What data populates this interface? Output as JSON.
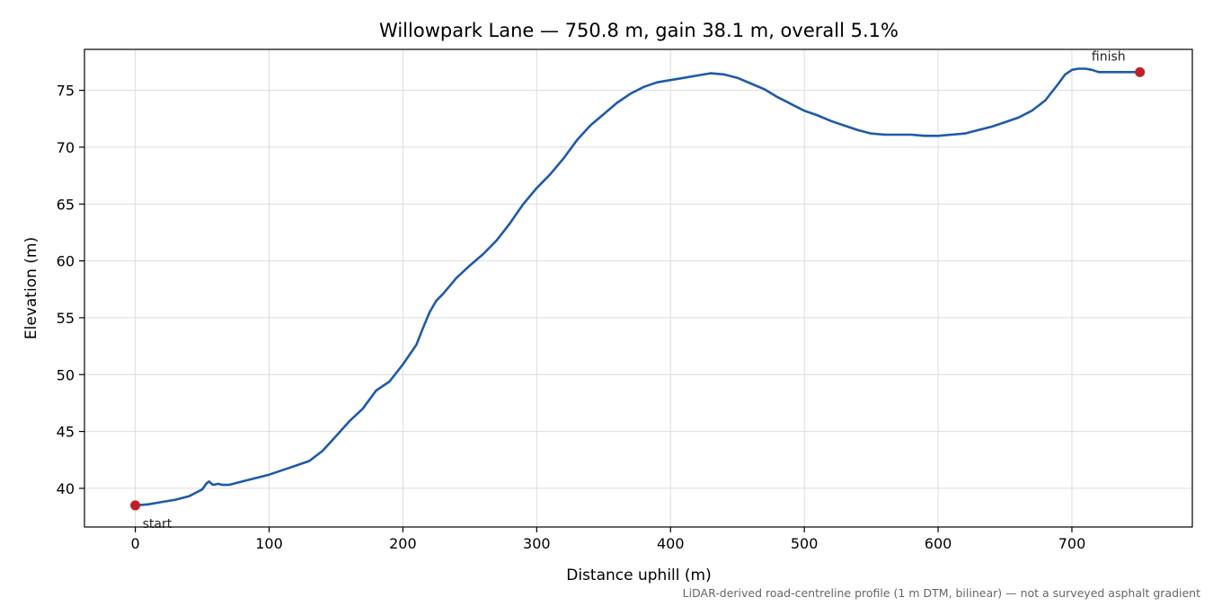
{
  "chart_data": {
    "type": "line",
    "title": "Willowpark Lane — 750.8 m, gain 38.1 m, overall 5.1%",
    "xlabel": "Distance uphill (m)",
    "ylabel": "Elevation (m)",
    "xlim": [
      -38,
      790
    ],
    "ylim": [
      36.6,
      78.6
    ],
    "xticks": [
      0,
      100,
      200,
      300,
      400,
      500,
      600,
      700
    ],
    "yticks": [
      40,
      45,
      50,
      55,
      60,
      65,
      70,
      75
    ],
    "grid": true,
    "series": [
      {
        "color": "#1f5aa8",
        "x": [
          0,
          10,
          20,
          30,
          40,
          45,
          50,
          53,
          55,
          58,
          62,
          65,
          70,
          80,
          90,
          100,
          110,
          120,
          130,
          140,
          150,
          160,
          170,
          180,
          190,
          200,
          210,
          215,
          220,
          225,
          230,
          240,
          250,
          260,
          270,
          280,
          290,
          300,
          310,
          320,
          330,
          340,
          350,
          360,
          370,
          380,
          390,
          400,
          410,
          420,
          430,
          440,
          450,
          460,
          470,
          480,
          490,
          500,
          510,
          520,
          530,
          540,
          550,
          560,
          570,
          580,
          590,
          600,
          610,
          620,
          630,
          640,
          650,
          660,
          670,
          680,
          690,
          695,
          700,
          705,
          710,
          715,
          720,
          730,
          740,
          750.8
        ],
        "y": [
          38.5,
          38.6,
          38.8,
          39.0,
          39.3,
          39.6,
          39.9,
          40.4,
          40.6,
          40.3,
          40.4,
          40.3,
          40.3,
          40.6,
          40.9,
          41.2,
          41.6,
          42.0,
          42.4,
          43.3,
          44.6,
          45.9,
          47.0,
          48.6,
          49.4,
          50.9,
          52.6,
          54.1,
          55.5,
          56.5,
          57.1,
          58.5,
          59.6,
          60.6,
          61.8,
          63.3,
          65.0,
          66.4,
          67.6,
          69.0,
          70.6,
          71.9,
          72.9,
          73.9,
          74.7,
          75.3,
          75.7,
          75.9,
          76.1,
          76.3,
          76.5,
          76.4,
          76.1,
          75.6,
          75.1,
          74.4,
          73.8,
          73.2,
          72.8,
          72.3,
          71.9,
          71.5,
          71.2,
          71.1,
          71.1,
          71.1,
          71.0,
          71.0,
          71.1,
          71.2,
          71.5,
          71.8,
          72.2,
          72.6,
          73.2,
          74.1,
          75.6,
          76.4,
          76.8,
          76.9,
          76.9,
          76.8,
          76.6,
          76.6,
          76.6,
          76.6
        ]
      }
    ],
    "annotations": [
      {
        "text": "start",
        "x": 0,
        "y": 38.5
      },
      {
        "text": "finish",
        "x": 750.8,
        "y": 76.6
      }
    ],
    "footnote": "LiDAR-derived road-centreline profile (1 m DTM, bilinear) — not a surveyed asphalt gradient"
  }
}
